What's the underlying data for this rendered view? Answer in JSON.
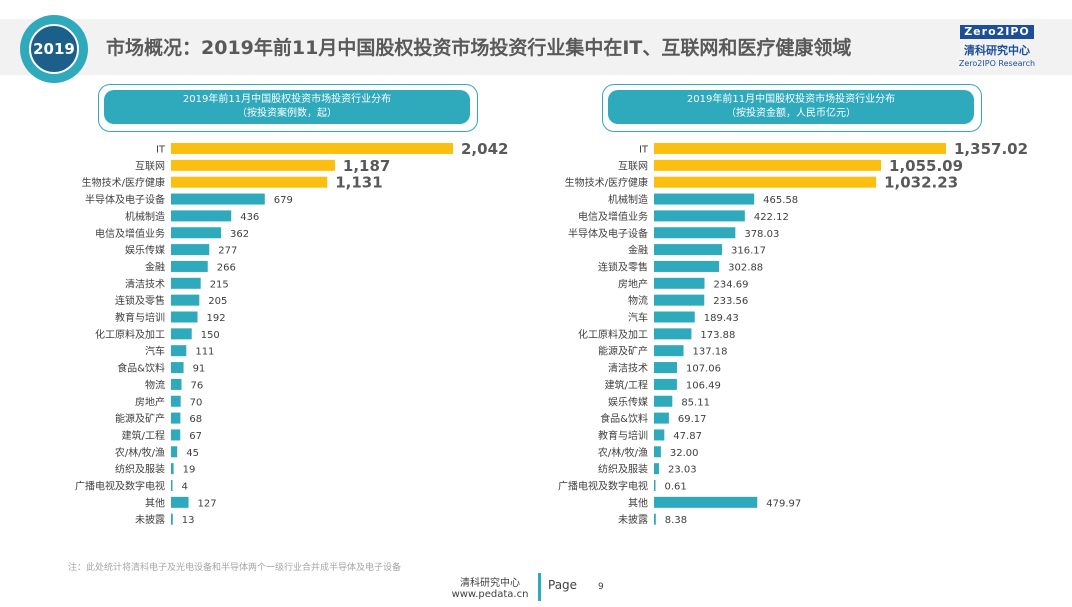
{
  "header": {
    "year_badge": "2019",
    "title": "市场概况：2019年前11月中国股权投资市场投资行业集中在IT、互联网和医疗健康领域",
    "logo_mark": "Zero2IPO",
    "logo_zh": "清科研究中心",
    "logo_en": "Zero2IPO Research"
  },
  "colors": {
    "highlight": "#fcbf10",
    "bar": "#2fa9bc",
    "teal": "#2fa9bc",
    "navy": "#1c5f8a"
  },
  "chart_data": [
    {
      "type": "bar",
      "orientation": "horizontal",
      "title_line1": "2019年前11月中国股权投资市场投资行业分布",
      "title_line2": "（按投资案例数，起）",
      "categories": [
        "IT",
        "互联网",
        "生物技术/医疗健康",
        "半导体及电子设备",
        "机械制造",
        "电信及增值业务",
        "娱乐传媒",
        "金融",
        "清洁技术",
        "连锁及零售",
        "教育与培训",
        "化工原料及加工",
        "汽车",
        "食品&饮料",
        "物流",
        "房地产",
        "能源及矿产",
        "建筑/工程",
        "农/林/牧/渔",
        "纺织及服装",
        "广播电视及数字电视",
        "其他",
        "未披露"
      ],
      "values": [
        2042,
        1187,
        1131,
        679,
        436,
        362,
        277,
        266,
        215,
        205,
        192,
        150,
        111,
        91,
        76,
        70,
        68,
        67,
        45,
        19,
        4,
        127,
        13
      ],
      "labels": [
        "2,042",
        "1,187",
        "1,131",
        "679",
        "436",
        "362",
        "277",
        "266",
        "215",
        "205",
        "192",
        "150",
        "111",
        "91",
        "76",
        "70",
        "68",
        "67",
        "45",
        "19",
        "4",
        "127",
        "13"
      ],
      "highlight_top": 3
    },
    {
      "type": "bar",
      "orientation": "horizontal",
      "title_line1": "2019年前11月中国股权投资市场投资行业分布",
      "title_line2": "（按投资金额，人民币亿元）",
      "categories": [
        "IT",
        "互联网",
        "生物技术/医疗健康",
        "机械制造",
        "电信及增值业务",
        "半导体及电子设备",
        "金融",
        "连锁及零售",
        "房地产",
        "物流",
        "汽车",
        "化工原料及加工",
        "能源及矿产",
        "清洁技术",
        "建筑/工程",
        "娱乐传媒",
        "食品&饮料",
        "教育与培训",
        "农/林/牧/渔",
        "纺织及服装",
        "广播电视及数字电视",
        "其他",
        "未披露"
      ],
      "values": [
        1357.02,
        1055.09,
        1032.23,
        465.58,
        422.12,
        378.03,
        316.17,
        302.88,
        234.69,
        233.56,
        189.43,
        173.88,
        137.18,
        107.06,
        106.49,
        85.11,
        69.17,
        47.87,
        32.0,
        23.03,
        0.61,
        479.97,
        8.38
      ],
      "labels": [
        "1,357.02",
        "1,055.09",
        "1,032.23",
        "465.58",
        "422.12",
        "378.03",
        "316.17",
        "302.88",
        "234.69",
        "233.56",
        "189.43",
        "173.88",
        "137.18",
        "107.06",
        "106.49",
        "85.11",
        "69.17",
        "47.87",
        "32.00",
        "23.03",
        "0.61",
        "479.97",
        "8.38"
      ],
      "highlight_top": 3
    }
  ],
  "footer": {
    "note": "注：此处统计将清科电子及光电设备和半导体两个一级行业合并成半导体及电子设备",
    "org": "清科研究中心",
    "url": "www.pedata.cn",
    "page_label": "Page",
    "page_number": "9"
  }
}
